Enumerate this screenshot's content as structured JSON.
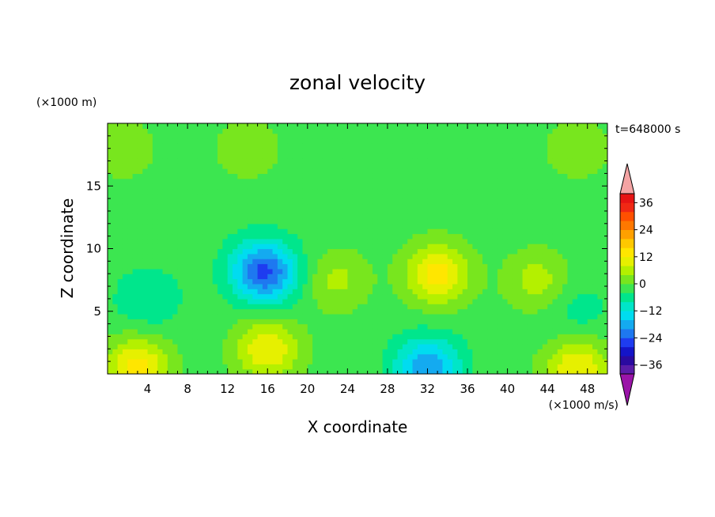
{
  "chart_data": {
    "type": "heatmap",
    "title": "zonal velocity",
    "xlabel": "X coordinate",
    "ylabel": "Z coordinate",
    "x_unit": "(×1000 m/s)",
    "y_unit": "(×1000 m)",
    "time_label": "t=648000 s",
    "xlim": [
      0,
      50
    ],
    "ylim": [
      0,
      20
    ],
    "x_ticks": [
      4,
      8,
      12,
      16,
      20,
      24,
      28,
      32,
      36,
      40,
      44,
      48
    ],
    "y_ticks": [
      5,
      10,
      15
    ],
    "colorbar": {
      "levels": [
        -40,
        -36,
        -32,
        -28,
        -24,
        -20,
        -16,
        -12,
        -8,
        -4,
        0,
        4,
        8,
        12,
        16,
        20,
        24,
        28,
        32,
        36,
        40
      ],
      "labels": [
        36,
        24,
        12,
        0,
        -12,
        -24,
        -36
      ],
      "colors": [
        "#5a1ca8",
        "#2a0aa0",
        "#1414c8",
        "#1e3cf0",
        "#1e78f0",
        "#14aaf0",
        "#00dcf0",
        "#00e6c8",
        "#00e68c",
        "#3ce650",
        "#78e61e",
        "#b4f000",
        "#e6f000",
        "#ffe600",
        "#ffc800",
        "#ffa000",
        "#ff7800",
        "#ff5000",
        "#f02814",
        "#e61414"
      ],
      "under_color": "#9a14a8",
      "over_color": "#f4a4a4"
    },
    "features": [
      {
        "x": 16,
        "z": 8,
        "value": -18
      },
      {
        "x": 15,
        "z": 8.5,
        "value": -10
      },
      {
        "x": 16,
        "z": 2,
        "value": 12
      },
      {
        "x": 33,
        "z": 8,
        "value": 14
      },
      {
        "x": 32,
        "z": 0.5,
        "value": -20
      },
      {
        "x": 3,
        "z": 0.5,
        "value": 14
      },
      {
        "x": 47,
        "z": 0.5,
        "value": 12
      },
      {
        "x": 4,
        "z": 6,
        "value": -8
      },
      {
        "x": 47,
        "z": 5,
        "value": -6
      },
      {
        "x": 1.5,
        "z": 18,
        "value": 3
      },
      {
        "x": 47,
        "z": 18,
        "value": 3
      },
      {
        "x": 14,
        "z": 18,
        "value": 3
      },
      {
        "x": 43,
        "z": 7.5,
        "value": 6
      },
      {
        "x": 23,
        "z": 7.5,
        "value": 5
      }
    ]
  }
}
